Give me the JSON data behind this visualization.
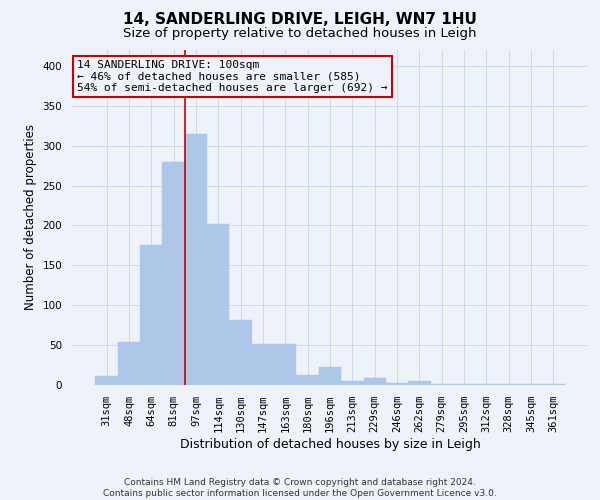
{
  "title1": "14, SANDERLING DRIVE, LEIGH, WN7 1HU",
  "title2": "Size of property relative to detached houses in Leigh",
  "xlabel": "Distribution of detached houses by size in Leigh",
  "ylabel": "Number of detached properties",
  "bar_labels": [
    "31sqm",
    "48sqm",
    "64sqm",
    "81sqm",
    "97sqm",
    "114sqm",
    "130sqm",
    "147sqm",
    "163sqm",
    "180sqm",
    "196sqm",
    "213sqm",
    "229sqm",
    "246sqm",
    "262sqm",
    "279sqm",
    "295sqm",
    "312sqm",
    "328sqm",
    "345sqm",
    "361sqm"
  ],
  "bar_values": [
    11,
    54,
    175,
    280,
    315,
    202,
    82,
    52,
    52,
    13,
    23,
    5,
    9,
    3,
    5,
    1,
    1,
    1,
    1,
    1,
    1
  ],
  "bar_color": "#aec6e8",
  "bar_edgecolor": "#aec6e8",
  "grid_color": "#cdd8e8",
  "background_color": "#eef2f9",
  "vline_color": "#cc0000",
  "ylim": [
    0,
    420
  ],
  "yticks": [
    0,
    50,
    100,
    150,
    200,
    250,
    300,
    350,
    400
  ],
  "annotation_line1": "14 SANDERLING DRIVE: 100sqm",
  "annotation_line2": "← 46% of detached houses are smaller (585)",
  "annotation_line3": "54% of semi-detached houses are larger (692) →",
  "footer1": "Contains HM Land Registry data © Crown copyright and database right 2024.",
  "footer2": "Contains public sector information licensed under the Open Government Licence v3.0.",
  "title1_fontsize": 11,
  "title2_fontsize": 9.5,
  "xlabel_fontsize": 9,
  "ylabel_fontsize": 8.5,
  "tick_fontsize": 7.5,
  "footer_fontsize": 6.5,
  "ann_fontsize": 8
}
